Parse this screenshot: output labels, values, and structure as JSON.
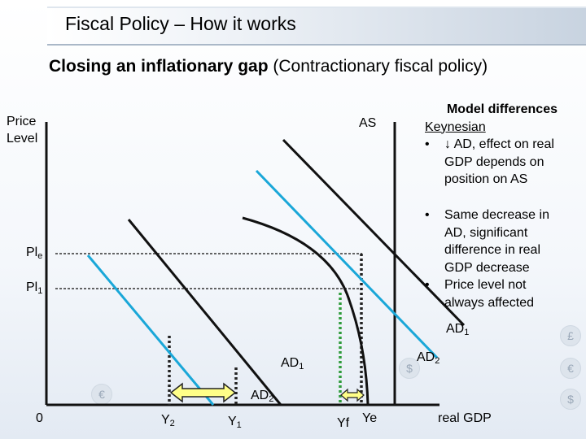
{
  "title": "Fiscal Policy – How it works",
  "subtitle": {
    "bold": "Closing an inflationary gap",
    "rest": " (Contractionary fiscal policy)"
  },
  "axes": {
    "y_label_line1": "Price",
    "y_label_line2": "Level",
    "x_label": "real GDP",
    "origin": "0"
  },
  "curve_labels": {
    "as": "AS",
    "ad1_right": "AD",
    "ad1_right_sub": "1",
    "ad1_mid": "AD",
    "ad1_mid_sub": "1",
    "ad2_right": "AD",
    "ad2_right_sub": "2",
    "ad2_low": "AD",
    "ad2_low_sub": "2"
  },
  "price_labels": {
    "ple_main": "Pl",
    "ple_sub": "e",
    "pl1_main": "Pl",
    "pl1_sub": "1"
  },
  "output_labels": {
    "y2_main": "Y",
    "y2_sub": "2",
    "y1_main": "Y",
    "y1_sub": "1",
    "yf": "Yf",
    "ye": "Ye"
  },
  "notes": {
    "heading": "Model differences",
    "keynesian": "Keynesian",
    "bullet": "•",
    "item1": "↓ AD, effect on real GDP depends on position on AS",
    "item2": "Same decrease in AD, significant difference in real GDP decrease",
    "item3": "Price level not always affected"
  },
  "decor": {
    "coin_pound": "£",
    "coin_euro": "€",
    "coin_dollar": "$"
  },
  "colors": {
    "blue_line": "#1aa7d8",
    "green_dot": "#2e9b3a",
    "arrow_fill": "#ffff88",
    "dark": "#111111"
  }
}
